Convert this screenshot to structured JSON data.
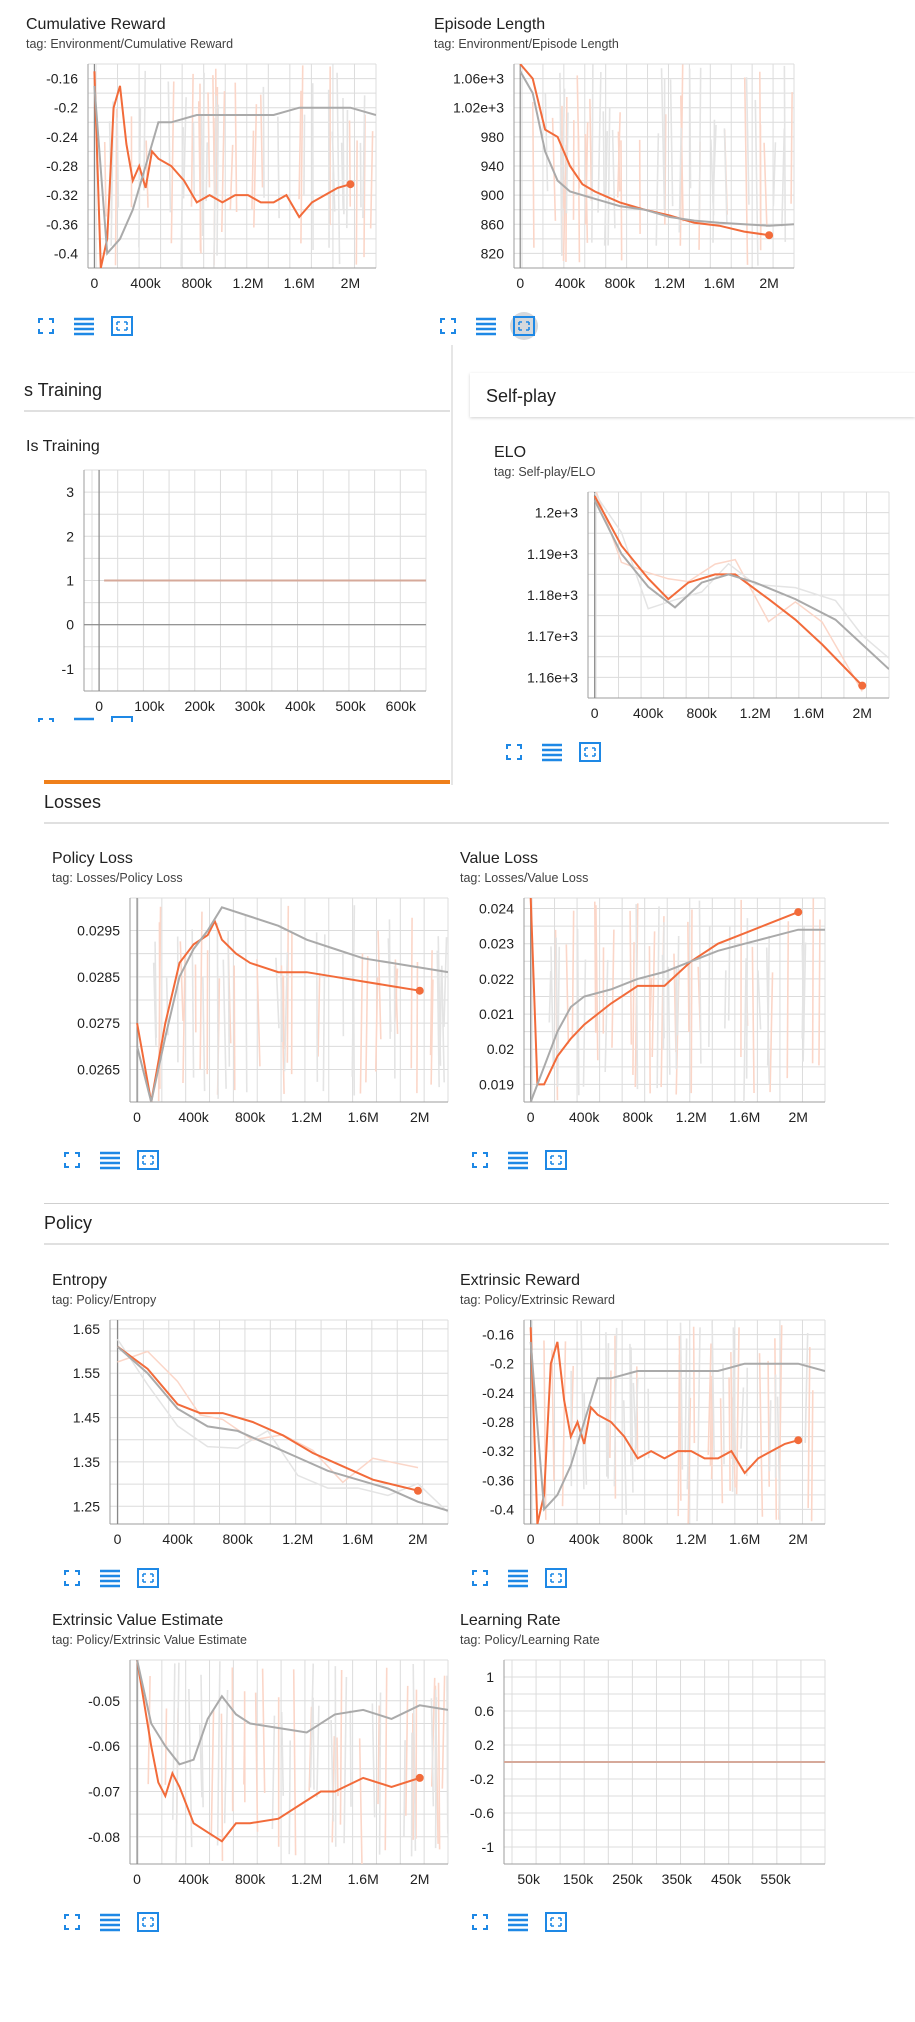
{
  "colors": {
    "orange": "#f26b3a",
    "gray": "#aaaaaa",
    "orange_faint": "#fbd6c8",
    "gray_faint": "#e4e4e4",
    "grid": "#dcdcdc",
    "icon_blue": "#1e88e5",
    "section_bar": "#ef7f1a"
  },
  "icons": [
    "fullscreen-icon",
    "data-table-icon",
    "fit-domain-icon"
  ],
  "sections": {
    "is_training": "s Training",
    "self_play": "Self-play",
    "losses": "Losses",
    "policy": "Policy"
  },
  "chart_data": [
    {
      "id": "cumulative-reward",
      "type": "line",
      "title": "Cumulative Reward",
      "tag": "tag: Environment/Cumulative Reward",
      "xlim": [
        -50000,
        2200000
      ],
      "ylim": [
        -0.42,
        -0.14
      ],
      "xticks": [
        0,
        400000,
        800000,
        1200000,
        1600000,
        2000000
      ],
      "xtick_labels": [
        "0",
        "400k",
        "800k",
        "1.2M",
        "1.6M",
        "2M"
      ],
      "yticks": [
        -0.4,
        -0.36,
        -0.32,
        -0.28,
        -0.24,
        -0.2,
        -0.16
      ],
      "ytick_labels": [
        "-0.4",
        "-0.36",
        "-0.32",
        "-0.28",
        "-0.24",
        "-0.2",
        "-0.16"
      ],
      "series": [
        {
          "color": "orange",
          "x": [
            0,
            50000,
            100000,
            150000,
            200000,
            250000,
            300000,
            350000,
            400000,
            450000,
            500000,
            600000,
            700000,
            800000,
            900000,
            1000000,
            1100000,
            1200000,
            1300000,
            1400000,
            1500000,
            1600000,
            1700000,
            1800000,
            1900000,
            2000000
          ],
          "y": [
            -0.15,
            -0.42,
            -0.38,
            -0.2,
            -0.17,
            -0.25,
            -0.3,
            -0.28,
            -0.31,
            -0.26,
            -0.27,
            -0.28,
            -0.3,
            -0.33,
            -0.32,
            -0.33,
            -0.32,
            -0.32,
            -0.33,
            -0.33,
            -0.32,
            -0.35,
            -0.33,
            -0.32,
            -0.31,
            -0.305
          ]
        },
        {
          "color": "gray",
          "x": [
            0,
            100000,
            200000,
            300000,
            400000,
            500000,
            600000,
            800000,
            1000000,
            1200000,
            1400000,
            1600000,
            1800000,
            2000000,
            2200000
          ],
          "y": [
            -0.17,
            -0.4,
            -0.38,
            -0.34,
            -0.28,
            -0.22,
            -0.22,
            -0.21,
            -0.21,
            -0.21,
            -0.21,
            -0.2,
            -0.2,
            -0.2,
            -0.21
          ]
        }
      ]
    },
    {
      "id": "episode-length",
      "type": "line",
      "title": "Episode Length",
      "tag": "tag: Environment/Episode Length",
      "xlim": [
        -50000,
        2200000
      ],
      "ylim": [
        800,
        1080
      ],
      "xticks": [
        0,
        400000,
        800000,
        1200000,
        1600000,
        2000000
      ],
      "xtick_labels": [
        "0",
        "400k",
        "800k",
        "1.2M",
        "1.6M",
        "2M"
      ],
      "yticks": [
        820,
        860,
        900,
        940,
        980,
        1020,
        1060
      ],
      "ytick_labels": [
        "820",
        "860",
        "900",
        "940",
        "980",
        "1.02e+3",
        "1.06e+3"
      ],
      "series": [
        {
          "color": "orange",
          "x": [
            0,
            100000,
            200000,
            300000,
            400000,
            500000,
            600000,
            800000,
            1000000,
            1200000,
            1400000,
            1600000,
            1800000,
            2000000
          ],
          "y": [
            1080,
            1060,
            990,
            980,
            940,
            915,
            905,
            890,
            880,
            872,
            862,
            858,
            850,
            845
          ]
        },
        {
          "color": "gray",
          "x": [
            0,
            100000,
            200000,
            300000,
            400000,
            600000,
            800000,
            1000000,
            1200000,
            1400000,
            1600000,
            1800000,
            2000000,
            2200000
          ],
          "y": [
            1070,
            1040,
            960,
            920,
            905,
            895,
            885,
            880,
            870,
            865,
            862,
            860,
            858,
            860
          ]
        }
      ]
    },
    {
      "id": "is-training",
      "type": "line",
      "title": "Is Training",
      "tag": "",
      "xlim": [
        -30000,
        650000
      ],
      "ylim": [
        -1.5,
        3.5
      ],
      "xticks": [
        0,
        100000,
        200000,
        300000,
        400000,
        500000,
        600000
      ],
      "xtick_labels": [
        "0",
        "100k",
        "200k",
        "300k",
        "400k",
        "500k",
        "600k"
      ],
      "yticks": [
        -1,
        0,
        1,
        2,
        3
      ],
      "ytick_labels": [
        "-1",
        "0",
        "1",
        "2",
        "3"
      ],
      "series": [
        {
          "color": "grayorange",
          "x": [
            10000,
            650000
          ],
          "y": [
            1,
            1
          ]
        }
      ]
    },
    {
      "id": "elo",
      "type": "line",
      "title": "ELO",
      "tag": "tag: Self-play/ELO",
      "xlim": [
        -50000,
        2200000
      ],
      "ylim": [
        1155,
        1205
      ],
      "xticks": [
        0,
        400000,
        800000,
        1200000,
        1600000,
        2000000
      ],
      "xtick_labels": [
        "0",
        "400k",
        "800k",
        "1.2M",
        "1.6M",
        "2M"
      ],
      "yticks": [
        1160,
        1170,
        1180,
        1190,
        1200
      ],
      "ytick_labels": [
        "1.16e+3",
        "1.17e+3",
        "1.18e+3",
        "1.19e+3",
        "1.2e+3"
      ],
      "series": [
        {
          "color": "orange",
          "x": [
            0,
            200000,
            400000,
            550000,
            700000,
            900000,
            1050000,
            1300000,
            1500000,
            1700000,
            2000000
          ],
          "y": [
            1204,
            1192,
            1184,
            1179,
            1183,
            1185,
            1185,
            1179,
            1174,
            1168,
            1158
          ]
        },
        {
          "color": "gray",
          "x": [
            0,
            200000,
            400000,
            600000,
            800000,
            1000000,
            1200000,
            1500000,
            1800000,
            2000000,
            2200000
          ],
          "y": [
            1203,
            1190,
            1182,
            1177,
            1183,
            1185,
            1183,
            1179,
            1174,
            1168,
            1162
          ]
        }
      ]
    },
    {
      "id": "policy-loss",
      "type": "line",
      "title": "Policy Loss",
      "tag": "tag: Losses/Policy Loss",
      "xlim": [
        -50000,
        2200000
      ],
      "ylim": [
        0.0258,
        0.0302
      ],
      "xticks": [
        0,
        400000,
        800000,
        1200000,
        1600000,
        2000000
      ],
      "xtick_labels": [
        "0",
        "400k",
        "800k",
        "1.2M",
        "1.6M",
        "2M"
      ],
      "yticks": [
        0.0265,
        0.0275,
        0.0285,
        0.0295
      ],
      "ytick_labels": [
        "0.0265",
        "0.0275",
        "0.0285",
        "0.0295"
      ],
      "series": [
        {
          "color": "orange",
          "x": [
            0,
            100000,
            200000,
            300000,
            400000,
            500000,
            550000,
            600000,
            700000,
            800000,
            1000000,
            1200000,
            1400000,
            1600000,
            1800000,
            2000000
          ],
          "y": [
            0.0275,
            0.0258,
            0.0275,
            0.0288,
            0.0292,
            0.0294,
            0.0297,
            0.0293,
            0.029,
            0.0288,
            0.0286,
            0.0286,
            0.0285,
            0.0284,
            0.0283,
            0.0282
          ]
        },
        {
          "color": "gray",
          "x": [
            0,
            100000,
            200000,
            300000,
            400000,
            500000,
            600000,
            800000,
            1000000,
            1200000,
            1400000,
            1600000,
            1800000,
            2000000,
            2200000
          ],
          "y": [
            0.027,
            0.0258,
            0.0272,
            0.0285,
            0.0291,
            0.0295,
            0.03,
            0.0298,
            0.0296,
            0.0293,
            0.0291,
            0.0289,
            0.0288,
            0.0287,
            0.0286
          ]
        }
      ]
    },
    {
      "id": "value-loss",
      "type": "line",
      "title": "Value Loss",
      "tag": "tag: Losses/Value Loss",
      "xlim": [
        -50000,
        2200000
      ],
      "ylim": [
        0.0185,
        0.0243
      ],
      "xticks": [
        0,
        400000,
        800000,
        1200000,
        1600000,
        2000000
      ],
      "xtick_labels": [
        "0",
        "400k",
        "800k",
        "1.2M",
        "1.6M",
        "2M"
      ],
      "yticks": [
        0.019,
        0.02,
        0.021,
        0.022,
        0.023,
        0.024
      ],
      "ytick_labels": [
        "0.019",
        "0.02",
        "0.021",
        "0.022",
        "0.023",
        "0.024"
      ],
      "series": [
        {
          "color": "orange",
          "x": [
            0,
            50000,
            100000,
            200000,
            300000,
            400000,
            600000,
            800000,
            1000000,
            1200000,
            1400000,
            1600000,
            1800000,
            2000000
          ],
          "y": [
            0.0243,
            0.019,
            0.019,
            0.0198,
            0.0203,
            0.0207,
            0.0213,
            0.0218,
            0.0218,
            0.0225,
            0.023,
            0.0233,
            0.0236,
            0.0239
          ]
        },
        {
          "color": "gray",
          "x": [
            0,
            100000,
            200000,
            300000,
            400000,
            600000,
            800000,
            1000000,
            1200000,
            1400000,
            1600000,
            1800000,
            2000000,
            2200000
          ],
          "y": [
            0.0185,
            0.0195,
            0.0205,
            0.0212,
            0.0215,
            0.0217,
            0.022,
            0.0222,
            0.0225,
            0.0228,
            0.023,
            0.0232,
            0.0234,
            0.0234
          ]
        }
      ]
    },
    {
      "id": "entropy",
      "type": "line",
      "title": "Entropy",
      "tag": "tag: Policy/Entropy",
      "xlim": [
        -50000,
        2200000
      ],
      "ylim": [
        1.21,
        1.67
      ],
      "xticks": [
        0,
        400000,
        800000,
        1200000,
        1600000,
        2000000
      ],
      "xtick_labels": [
        "0",
        "400k",
        "800k",
        "1.2M",
        "1.6M",
        "2M"
      ],
      "yticks": [
        1.25,
        1.35,
        1.45,
        1.55,
        1.65
      ],
      "ytick_labels": [
        "1.25",
        "1.35",
        "1.45",
        "1.55",
        "1.65"
      ],
      "series": [
        {
          "color": "orange",
          "x": [
            0,
            200000,
            400000,
            550000,
            700000,
            900000,
            1100000,
            1300000,
            1500000,
            1700000,
            2000000
          ],
          "y": [
            1.61,
            1.56,
            1.48,
            1.46,
            1.46,
            1.44,
            1.41,
            1.37,
            1.34,
            1.31,
            1.285
          ]
        },
        {
          "color": "gray",
          "x": [
            0,
            200000,
            400000,
            600000,
            800000,
            1000000,
            1200000,
            1400000,
            1600000,
            1800000,
            2000000,
            2200000
          ],
          "y": [
            1.61,
            1.55,
            1.47,
            1.43,
            1.42,
            1.39,
            1.36,
            1.33,
            1.31,
            1.29,
            1.26,
            1.24
          ]
        }
      ]
    },
    {
      "id": "extrinsic-reward",
      "type": "line",
      "title": "Extrinsic Reward",
      "tag": "tag: Policy/Extrinsic Reward",
      "xlim": [
        -50000,
        2200000
      ],
      "ylim": [
        -0.42,
        -0.14
      ],
      "xticks": [
        0,
        400000,
        800000,
        1200000,
        1600000,
        2000000
      ],
      "xtick_labels": [
        "0",
        "400k",
        "800k",
        "1.2M",
        "1.6M",
        "2M"
      ],
      "yticks": [
        -0.4,
        -0.36,
        -0.32,
        -0.28,
        -0.24,
        -0.2,
        -0.16
      ],
      "ytick_labels": [
        "-0.4",
        "-0.36",
        "-0.32",
        "-0.28",
        "-0.24",
        "-0.2",
        "-0.16"
      ],
      "series": [
        {
          "color": "orange",
          "x": [
            0,
            50000,
            100000,
            150000,
            200000,
            250000,
            300000,
            350000,
            400000,
            450000,
            500000,
            600000,
            700000,
            800000,
            900000,
            1000000,
            1100000,
            1200000,
            1300000,
            1400000,
            1500000,
            1600000,
            1700000,
            1800000,
            1900000,
            2000000
          ],
          "y": [
            -0.15,
            -0.42,
            -0.38,
            -0.2,
            -0.17,
            -0.25,
            -0.3,
            -0.28,
            -0.31,
            -0.26,
            -0.27,
            -0.28,
            -0.3,
            -0.33,
            -0.32,
            -0.33,
            -0.32,
            -0.32,
            -0.33,
            -0.33,
            -0.32,
            -0.35,
            -0.33,
            -0.32,
            -0.31,
            -0.305
          ]
        },
        {
          "color": "gray",
          "x": [
            0,
            100000,
            200000,
            300000,
            400000,
            500000,
            600000,
            800000,
            1000000,
            1200000,
            1400000,
            1600000,
            1800000,
            2000000,
            2200000
          ],
          "y": [
            -0.17,
            -0.4,
            -0.38,
            -0.34,
            -0.28,
            -0.22,
            -0.22,
            -0.21,
            -0.21,
            -0.21,
            -0.21,
            -0.2,
            -0.2,
            -0.2,
            -0.21
          ]
        }
      ]
    },
    {
      "id": "extrinsic-value-estimate",
      "type": "line",
      "title": "Extrinsic Value Estimate",
      "tag": "tag: Policy/Extrinsic Value Estimate",
      "xlim": [
        -50000,
        2200000
      ],
      "ylim": [
        -0.086,
        -0.041
      ],
      "xticks": [
        0,
        400000,
        800000,
        1200000,
        1600000,
        2000000
      ],
      "xtick_labels": [
        "0",
        "400k",
        "800k",
        "1.2M",
        "1.6M",
        "2M"
      ],
      "yticks": [
        -0.08,
        -0.07,
        -0.06,
        -0.05
      ],
      "ytick_labels": [
        "-0.08",
        "-0.07",
        "-0.06",
        "-0.05"
      ],
      "series": [
        {
          "color": "orange",
          "x": [
            0,
            100000,
            150000,
            200000,
            250000,
            300000,
            400000,
            500000,
            600000,
            700000,
            800000,
            1000000,
            1200000,
            1300000,
            1400000,
            1600000,
            1700000,
            1800000,
            2000000
          ],
          "y": [
            -0.041,
            -0.06,
            -0.068,
            -0.071,
            -0.066,
            -0.069,
            -0.077,
            -0.079,
            -0.081,
            -0.077,
            -0.077,
            -0.076,
            -0.072,
            -0.07,
            -0.07,
            -0.067,
            -0.068,
            -0.069,
            -0.067
          ]
        },
        {
          "color": "gray",
          "x": [
            0,
            100000,
            200000,
            300000,
            400000,
            500000,
            600000,
            700000,
            800000,
            1000000,
            1200000,
            1400000,
            1600000,
            1800000,
            2000000,
            2200000
          ],
          "y": [
            -0.041,
            -0.055,
            -0.06,
            -0.064,
            -0.063,
            -0.054,
            -0.049,
            -0.053,
            -0.055,
            -0.056,
            -0.057,
            -0.053,
            -0.052,
            -0.054,
            -0.051,
            -0.052
          ]
        }
      ]
    },
    {
      "id": "learning-rate",
      "type": "line",
      "title": "Learning Rate",
      "tag": "tag: Policy/Learning Rate",
      "xlim": [
        0,
        650000
      ],
      "ylim": [
        -1.2,
        1.2
      ],
      "xticks": [
        50000,
        150000,
        250000,
        350000,
        450000,
        550000
      ],
      "xtick_labels": [
        "50k",
        "150k",
        "250k",
        "350k",
        "450k",
        "550k"
      ],
      "yticks": [
        -1,
        -0.6,
        -0.2,
        0.2,
        0.6,
        1
      ],
      "ytick_labels": [
        "-1",
        "-0.6",
        "-0.2",
        "0.2",
        "0.6",
        "1"
      ],
      "series": [
        {
          "color": "grayorange",
          "x": [
            0,
            650000
          ],
          "y": [
            0,
            0
          ]
        }
      ]
    }
  ]
}
